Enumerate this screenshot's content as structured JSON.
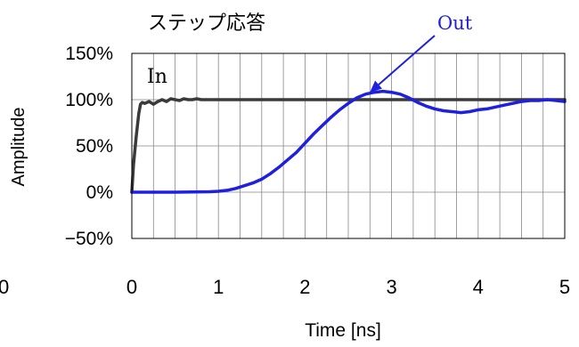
{
  "chart_data": {
    "type": "line",
    "title": "ステップ応答",
    "xlabel": "Time [ns]",
    "ylabel": "Amplitude",
    "x_ticks": [
      "0",
      "1",
      "2",
      "3",
      "4",
      "5"
    ],
    "stray_tick_label": "0",
    "y_ticks": [
      "150%",
      "100%",
      "50%",
      "0%",
      "−50%"
    ],
    "xlim": [
      0,
      5
    ],
    "ylim": [
      -50,
      150
    ],
    "x_grid_step": 0.25,
    "y_grid_step": 50,
    "grid": true,
    "series": [
      {
        "name": "In",
        "color": "#3a3a3a",
        "x": [
          0,
          0.02,
          0.05,
          0.08,
          0.1,
          0.12,
          0.15,
          0.2,
          0.25,
          0.3,
          0.35,
          0.4,
          0.45,
          0.5,
          0.55,
          0.6,
          0.65,
          0.7,
          0.75,
          0.8,
          0.85,
          0.9,
          1.0,
          1.5,
          2.0,
          2.5,
          3.0,
          3.5,
          4.0,
          4.5,
          5.0
        ],
        "y": [
          0,
          30,
          60,
          85,
          95,
          97,
          96,
          98,
          95,
          98,
          100,
          98,
          101,
          100,
          99,
          101,
          100,
          100,
          101,
          100,
          100,
          100,
          100,
          100,
          100,
          100,
          100,
          100,
          100,
          100,
          100
        ]
      },
      {
        "name": "Out",
        "color": "#1f1fe0",
        "x": [
          0,
          0.5,
          0.9,
          1.0,
          1.1,
          1.2,
          1.3,
          1.4,
          1.5,
          1.6,
          1.7,
          1.8,
          1.9,
          2.0,
          2.1,
          2.2,
          2.3,
          2.4,
          2.5,
          2.6,
          2.7,
          2.8,
          2.9,
          3.0,
          3.1,
          3.2,
          3.3,
          3.4,
          3.5,
          3.6,
          3.7,
          3.8,
          3.9,
          4.0,
          4.1,
          4.2,
          4.3,
          4.4,
          4.5,
          4.6,
          4.7,
          4.8,
          4.9,
          5.0
        ],
        "y": [
          0,
          0,
          0.5,
          1,
          2,
          4,
          7,
          10,
          14,
          20,
          27,
          35,
          43,
          53,
          63,
          72,
          81,
          89,
          96,
          102,
          106,
          108,
          109,
          108,
          106,
          102,
          97,
          93,
          90,
          88,
          87,
          86,
          87,
          89,
          90,
          92,
          94,
          96,
          98,
          99,
          99,
          100,
          99,
          98
        ]
      }
    ],
    "annotations": [
      {
        "text": "In",
        "series": "In"
      },
      {
        "text": "Out",
        "series": "Out",
        "arrow": true,
        "points_to": [
          2.75,
          108
        ]
      }
    ]
  }
}
